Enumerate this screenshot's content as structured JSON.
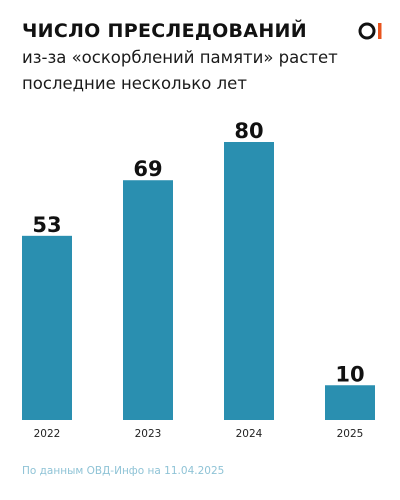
{
  "header": {
    "title": "ЧИСЛО ПРЕСЛЕДОВАНИЙ",
    "subtitle_line1": "из-за «оскорблений памяти» растет",
    "subtitle_line2": "последние несколько лет"
  },
  "logo": {
    "icon": "ovd-info-logo-icon",
    "colors": {
      "circle": "#111111",
      "bar": "#e8541e"
    }
  },
  "footer": {
    "source": "По данным ОВД-Инфо на 11.04.2025"
  },
  "colors": {
    "bar": "#2a8fb0",
    "text": "#111111",
    "source": "#8fc3d6"
  },
  "chart_data": {
    "type": "bar",
    "categories": [
      "2022",
      "2023",
      "2024",
      "2025"
    ],
    "values": [
      53,
      69,
      80,
      10
    ],
    "title": "",
    "xlabel": "",
    "ylabel": "",
    "ylim": [
      0,
      100
    ],
    "grid": false,
    "legend": "none"
  }
}
